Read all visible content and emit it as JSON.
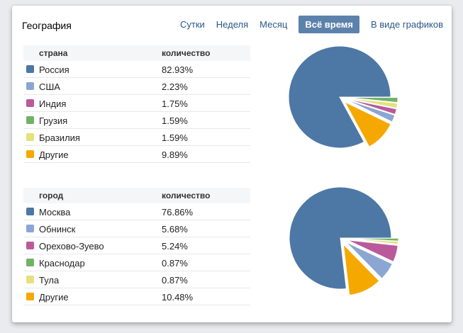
{
  "header": {
    "title": "География",
    "tabs": [
      {
        "label": "Сутки",
        "selected": false
      },
      {
        "label": "Неделя",
        "selected": false
      },
      {
        "label": "Месяц",
        "selected": false
      },
      {
        "label": "Всё время",
        "selected": true
      }
    ],
    "graphs_link": "В виде графиков"
  },
  "tables": [
    {
      "title": "страна",
      "value_header": "количество",
      "rows": [
        {
          "label": "Россия",
          "value": "82.93%",
          "color": "#4d77a5"
        },
        {
          "label": "США",
          "value": "2.23%",
          "color": "#8ba6d2"
        },
        {
          "label": "Индия",
          "value": "1.75%",
          "color": "#ba5a9b"
        },
        {
          "label": "Грузия",
          "value": "1.59%",
          "color": "#72b266"
        },
        {
          "label": "Бразилия",
          "value": "1.59%",
          "color": "#e5e17b"
        },
        {
          "label": "Другие",
          "value": "9.89%",
          "color": "#f5a800"
        }
      ]
    },
    {
      "title": "город",
      "value_header": "количество",
      "rows": [
        {
          "label": "Москва",
          "value": "76.86%",
          "color": "#4d77a5"
        },
        {
          "label": "Обнинск",
          "value": "5.68%",
          "color": "#8ba6d2"
        },
        {
          "label": "Орехово-Зуево",
          "value": "5.24%",
          "color": "#ba5a9b"
        },
        {
          "label": "Краснодар",
          "value": "0.87%",
          "color": "#72b266"
        },
        {
          "label": "Тула",
          "value": "0.87%",
          "color": "#e5e17b"
        },
        {
          "label": "Другие",
          "value": "10.48%",
          "color": "#f5a800"
        }
      ]
    }
  ],
  "chart_data": [
    {
      "type": "pie",
      "title": "страна",
      "categories": [
        "Россия",
        "США",
        "Индия",
        "Грузия",
        "Бразилия",
        "Другие"
      ],
      "values": [
        82.93,
        2.23,
        1.75,
        1.59,
        1.59,
        9.89
      ],
      "colors": [
        "#4d77a5",
        "#8ba6d2",
        "#ba5a9b",
        "#72b266",
        "#e5e17b",
        "#f5a800"
      ],
      "unit": "%",
      "start_angle_deg": 0,
      "direction": "clockwise",
      "slice_order": "ascending_by_value",
      "exploded": "all_except_largest",
      "legend_position": "table-left"
    },
    {
      "type": "pie",
      "title": "город",
      "categories": [
        "Москва",
        "Обнинск",
        "Орехово-Зуево",
        "Краснодар",
        "Тула",
        "Другие"
      ],
      "values": [
        76.86,
        5.68,
        5.24,
        0.87,
        0.87,
        10.48
      ],
      "colors": [
        "#4d77a5",
        "#8ba6d2",
        "#ba5a9b",
        "#72b266",
        "#e5e17b",
        "#f5a800"
      ],
      "unit": "%",
      "start_angle_deg": 0,
      "direction": "clockwise",
      "slice_order": "ascending_by_value",
      "exploded": "all_except_largest",
      "legend_position": "table-left"
    }
  ],
  "colors": {
    "link": "#2a5885",
    "selected_tab_bg": "#5c82ab",
    "selected_tab_text": "#ffffff",
    "page_bg": "#e9ebee",
    "card_bg": "#ffffff",
    "table_header_bg": "#f5f6f8",
    "row_border": "#e7e8ec"
  }
}
